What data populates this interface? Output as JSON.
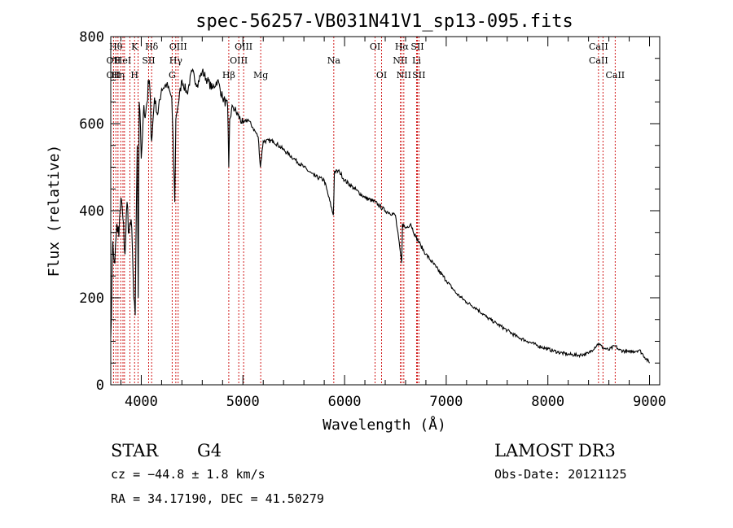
{
  "chart_data": {
    "type": "line",
    "title": "spec-56257-VB031N41V1_sp13-095.fits",
    "xlabel": "Wavelength (Å)",
    "ylabel": "Flux (relative)",
    "xlim": [
      3700,
      9100
    ],
    "ylim": [
      0,
      800
    ],
    "xticks": [
      4000,
      5000,
      6000,
      7000,
      8000,
      9000
    ],
    "yticks": [
      0,
      200,
      400,
      600,
      800
    ],
    "series": [
      {
        "name": "flux",
        "color": "#000000",
        "x": [
          3700,
          3720,
          3740,
          3760,
          3780,
          3800,
          3820,
          3840,
          3860,
          3880,
          3900,
          3920,
          3940,
          3960,
          3970,
          3980,
          4000,
          4020,
          4050,
          4080,
          4102,
          4130,
          4160,
          4200,
          4250,
          4300,
          4330,
          4340,
          4360,
          4400,
          4450,
          4500,
          4550,
          4600,
          4650,
          4700,
          4750,
          4800,
          4850,
          4861,
          4870,
          4900,
          4950,
          5000,
          5050,
          5100,
          5150,
          5172,
          5200,
          5300,
          5400,
          5500,
          5600,
          5700,
          5800,
          5890,
          5900,
          5950,
          6000,
          6100,
          6200,
          6300,
          6400,
          6500,
          6562,
          6570,
          6600,
          6650,
          6700,
          6750,
          6800,
          6900,
          7000,
          7100,
          7200,
          7300,
          7400,
          7500,
          7600,
          7700,
          7800,
          7900,
          8000,
          8100,
          8200,
          8300,
          8400,
          8498,
          8542,
          8600,
          8662,
          8700,
          8800,
          8900,
          9000
        ],
        "y": [
          110,
          330,
          280,
          370,
          340,
          430,
          380,
          300,
          420,
          350,
          380,
          250,
          160,
          550,
          200,
          650,
          520,
          620,
          640,
          700,
          560,
          660,
          620,
          680,
          690,
          660,
          420,
          610,
          640,
          700,
          670,
          720,
          690,
          720,
          700,
          680,
          700,
          660,
          640,
          500,
          610,
          640,
          620,
          600,
          610,
          590,
          570,
          500,
          560,
          560,
          540,
          520,
          500,
          480,
          470,
          390,
          490,
          490,
          470,
          450,
          430,
          420,
          400,
          390,
          280,
          370,
          360,
          370,
          340,
          320,
          300,
          270,
          240,
          210,
          190,
          175,
          155,
          140,
          125,
          110,
          100,
          90,
          82,
          75,
          70,
          68,
          72,
          95,
          85,
          80,
          90,
          80,
          75,
          80,
          50
        ]
      }
    ],
    "lines": [
      {
        "wave": 3727,
        "labels": [
          "",
          "OII",
          "OII"
        ]
      },
      {
        "wave": 3750,
        "labels": [
          "Hθ",
          "",
          ""
        ]
      },
      {
        "wave": 3771,
        "labels": [
          "",
          "",
          "Hη"
        ]
      },
      {
        "wave": 3798,
        "labels": [
          "",
          "",
          ""
        ]
      },
      {
        "wave": 3820,
        "labels": [
          "",
          "HeI",
          ""
        ]
      },
      {
        "wave": 3835,
        "labels": [
          "",
          "",
          ""
        ]
      },
      {
        "wave": 3889,
        "labels": [
          "",
          "",
          ""
        ]
      },
      {
        "wave": 3934,
        "labels": [
          "K",
          "",
          "H"
        ]
      },
      {
        "wave": 3969,
        "labels": [
          "",
          "",
          ""
        ]
      },
      {
        "wave": 4072,
        "labels": [
          "",
          "SII",
          ""
        ]
      },
      {
        "wave": 4102,
        "labels": [
          "Hδ",
          "",
          ""
        ]
      },
      {
        "wave": 4304,
        "labels": [
          "",
          "",
          "G"
        ]
      },
      {
        "wave": 4340,
        "labels": [
          "",
          "Hγ",
          ""
        ]
      },
      {
        "wave": 4363,
        "labels": [
          "OIII",
          "",
          ""
        ]
      },
      {
        "wave": 4861,
        "labels": [
          "",
          "",
          "Hβ"
        ]
      },
      {
        "wave": 4959,
        "labels": [
          "",
          "OIII",
          ""
        ]
      },
      {
        "wave": 5007,
        "labels": [
          "OIII",
          "",
          ""
        ]
      },
      {
        "wave": 5175,
        "labels": [
          "",
          "",
          "Mg"
        ]
      },
      {
        "wave": 5894,
        "labels": [
          "",
          "Na",
          ""
        ]
      },
      {
        "wave": 6300,
        "labels": [
          "OI",
          "",
          ""
        ]
      },
      {
        "wave": 6364,
        "labels": [
          "",
          "",
          "OI"
        ]
      },
      {
        "wave": 6548,
        "labels": [
          "",
          "NII",
          ""
        ]
      },
      {
        "wave": 6563,
        "labels": [
          "Hα",
          "",
          ""
        ]
      },
      {
        "wave": 6583,
        "labels": [
          "",
          "",
          "NII"
        ]
      },
      {
        "wave": 6708,
        "labels": [
          "",
          "Li",
          ""
        ]
      },
      {
        "wave": 6716,
        "labels": [
          "SII",
          "",
          ""
        ]
      },
      {
        "wave": 6731,
        "labels": [
          "",
          "",
          "SII"
        ]
      },
      {
        "wave": 8498,
        "labels": [
          "CaII",
          "CaII",
          ""
        ]
      },
      {
        "wave": 8542,
        "labels": [
          "",
          "",
          ""
        ]
      },
      {
        "wave": 8662,
        "labels": [
          "",
          "",
          "CaII"
        ]
      }
    ],
    "line_color": "#cc0000"
  },
  "info": {
    "class_label": "STAR",
    "subclass": "G4",
    "redshift": "cz = −44.8 ± 1.8 km/s",
    "coords": "RA =  34.17190, DEC =  41.50279",
    "survey": "LAMOST DR3",
    "obs_date": "Obs-Date: 20121125"
  }
}
